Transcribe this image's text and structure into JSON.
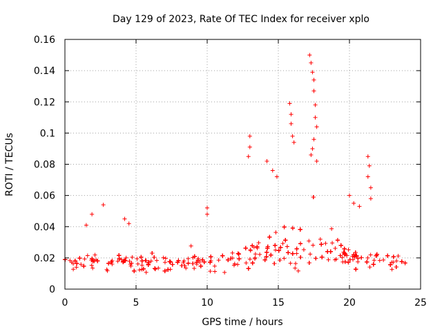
{
  "chart_data": {
    "type": "scatter",
    "title": "Day 129 of 2023, Rate Of TEC Index for receiver xplo",
    "xlabel": "GPS time / hours",
    "ylabel": "ROTI / TECUs",
    "xlim": [
      0,
      25
    ],
    "ylim": [
      0,
      0.16
    ],
    "x_ticks": [
      0,
      5,
      10,
      15,
      20,
      25
    ],
    "x_tick_labels": [
      "0",
      "5",
      "10",
      "15",
      "20",
      "25"
    ],
    "y_ticks": [
      0,
      0.02,
      0.04,
      0.06,
      0.08,
      0.1,
      0.12,
      0.14,
      0.16
    ],
    "y_tick_labels": [
      "0",
      "0.02",
      "0.04",
      "0.06",
      "0.08",
      "0.1",
      "0.12",
      "0.14",
      "0.16"
    ],
    "grid": true,
    "marker": "+",
    "marker_color": "#ff0000",
    "series": [
      {
        "name": "ROTI",
        "envelope_hours": [
          0,
          2,
          4,
          6,
          8,
          10,
          11,
          12,
          13,
          14,
          15,
          16,
          17,
          18,
          19,
          20,
          21,
          22,
          23,
          24
        ],
        "envelope_median": [
          0.017,
          0.017,
          0.017,
          0.016,
          0.016,
          0.016,
          0.017,
          0.018,
          0.021,
          0.024,
          0.026,
          0.026,
          0.026,
          0.025,
          0.022,
          0.019,
          0.018,
          0.017,
          0.016,
          0.016
        ],
        "envelope_spread": [
          0.006,
          0.006,
          0.006,
          0.006,
          0.006,
          0.006,
          0.007,
          0.009,
          0.012,
          0.016,
          0.018,
          0.018,
          0.018,
          0.017,
          0.013,
          0.009,
          0.008,
          0.007,
          0.007,
          0.007
        ],
        "outliers": [
          {
            "x": 2.7,
            "y": 0.054
          },
          {
            "x": 1.9,
            "y": 0.048
          },
          {
            "x": 1.5,
            "y": 0.041
          },
          {
            "x": 4.2,
            "y": 0.045
          },
          {
            "x": 4.5,
            "y": 0.042
          },
          {
            "x": 10.0,
            "y": 0.052
          },
          {
            "x": 10.0,
            "y": 0.048
          },
          {
            "x": 13.0,
            "y": 0.098
          },
          {
            "x": 13.0,
            "y": 0.091
          },
          {
            "x": 12.9,
            "y": 0.085
          },
          {
            "x": 14.2,
            "y": 0.082
          },
          {
            "x": 14.6,
            "y": 0.076
          },
          {
            "x": 14.9,
            "y": 0.072
          },
          {
            "x": 15.8,
            "y": 0.119
          },
          {
            "x": 15.9,
            "y": 0.112
          },
          {
            "x": 15.9,
            "y": 0.106
          },
          {
            "x": 16.0,
            "y": 0.098
          },
          {
            "x": 16.1,
            "y": 0.094
          },
          {
            "x": 17.2,
            "y": 0.15
          },
          {
            "x": 17.3,
            "y": 0.145
          },
          {
            "x": 17.4,
            "y": 0.139
          },
          {
            "x": 17.5,
            "y": 0.134
          },
          {
            "x": 17.5,
            "y": 0.127
          },
          {
            "x": 17.6,
            "y": 0.118
          },
          {
            "x": 17.6,
            "y": 0.11
          },
          {
            "x": 17.7,
            "y": 0.104
          },
          {
            "x": 17.5,
            "y": 0.096
          },
          {
            "x": 17.4,
            "y": 0.09
          },
          {
            "x": 17.3,
            "y": 0.086
          },
          {
            "x": 17.7,
            "y": 0.082
          },
          {
            "x": 21.3,
            "y": 0.085
          },
          {
            "x": 21.4,
            "y": 0.079
          },
          {
            "x": 21.3,
            "y": 0.072
          },
          {
            "x": 21.5,
            "y": 0.065
          },
          {
            "x": 21.5,
            "y": 0.058
          },
          {
            "x": 20.0,
            "y": 0.06
          },
          {
            "x": 20.3,
            "y": 0.055
          },
          {
            "x": 20.7,
            "y": 0.053
          }
        ]
      }
    ]
  }
}
